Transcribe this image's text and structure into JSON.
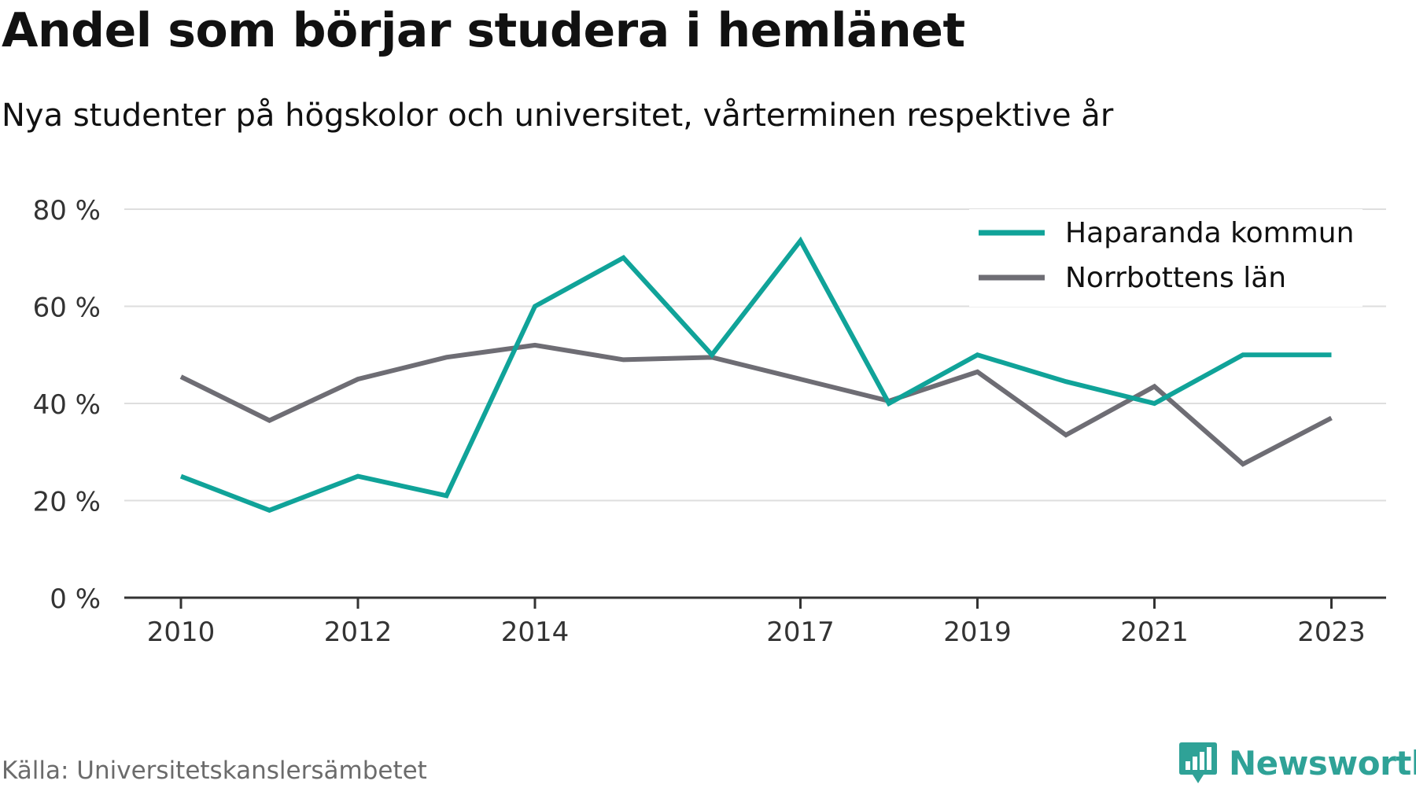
{
  "title": "Andel som börjar studera i hemlänet",
  "subtitle": "Nya studenter på högskolor och universitet, vårterminen respektive år",
  "source": "Källa: Universitetskanslersämbetet",
  "brand": {
    "name": "Newsworthy",
    "icon": "bar-chart-badge-icon",
    "color": "#2fa297"
  },
  "chart_data": {
    "type": "line",
    "x": [
      2010,
      2011,
      2012,
      2013,
      2014,
      2015,
      2016,
      2017,
      2018,
      2019,
      2020,
      2021,
      2022,
      2023
    ],
    "xticks": [
      "2010",
      "2012",
      "2014",
      "2017",
      "2019",
      "2021",
      "2023"
    ],
    "yticks": [
      "0 %",
      "20 %",
      "40 %",
      "60 %",
      "80 %"
    ],
    "ylim": [
      0,
      80
    ],
    "grid": true,
    "legend_position": "top-right",
    "series": [
      {
        "name": "Haparanda kommun",
        "color": "#10a399",
        "values": [
          25,
          18,
          25,
          21,
          60,
          70,
          50,
          73.5,
          40,
          50,
          44.5,
          40,
          50,
          50
        ]
      },
      {
        "name": "Norrbottens län",
        "color": "#6e6d74",
        "values": [
          45.5,
          36.5,
          45,
          49.5,
          52,
          49,
          49.5,
          45,
          40.5,
          46.5,
          33.5,
          43.5,
          27.5,
          37
        ]
      }
    ]
  }
}
